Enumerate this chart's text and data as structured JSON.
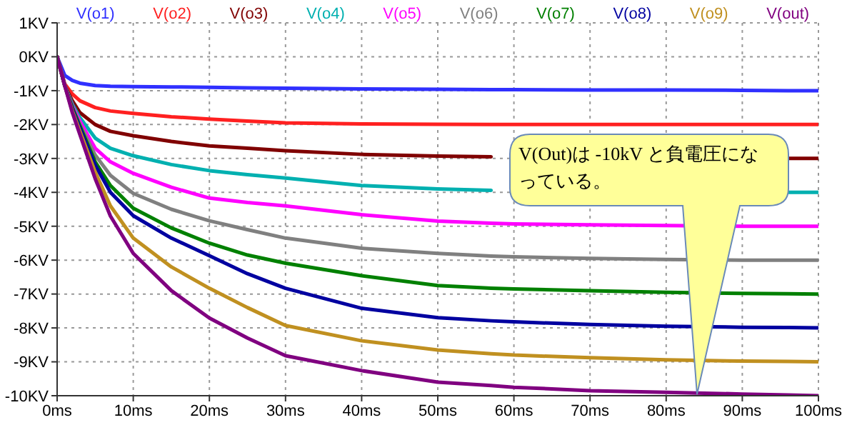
{
  "chart_data": {
    "type": "line",
    "x": [
      0,
      1,
      2,
      3,
      5,
      7,
      10,
      15,
      20,
      25,
      30,
      40,
      50,
      57,
      60,
      70,
      80,
      90,
      96,
      100
    ],
    "series": [
      {
        "name": "V(o1)",
        "color": "#3030ff",
        "values": [
          0,
          -0.55,
          -0.7,
          -0.78,
          -0.85,
          -0.87,
          -0.88,
          -0.89,
          -0.9,
          -0.92,
          -0.93,
          -0.95,
          -0.96,
          -0.97,
          -0.97,
          -0.98,
          -0.98,
          -0.99,
          -1.0,
          -1.0
        ]
      },
      {
        "name": "V(o2)",
        "color": "#ff2020",
        "values": [
          0,
          -0.8,
          -1.1,
          -1.3,
          -1.5,
          -1.6,
          -1.67,
          -1.77,
          -1.84,
          -1.9,
          -1.95,
          -1.98,
          -1.99,
          -2.0,
          -2.0,
          -2.0,
          -2.0,
          -2.0,
          -2.0,
          -2.0
        ]
      },
      {
        "name": "V(o3)",
        "color": "#800000",
        "values": [
          0,
          -0.85,
          -1.3,
          -1.65,
          -2.0,
          -2.2,
          -2.33,
          -2.5,
          -2.63,
          -2.7,
          -2.77,
          -2.88,
          -2.93,
          -2.95,
          null,
          null,
          null,
          null,
          -3.0,
          -3.0
        ]
      },
      {
        "name": "V(o4)",
        "color": "#00b0b0",
        "values": [
          0,
          -0.85,
          -1.4,
          -1.8,
          -2.4,
          -2.7,
          -2.92,
          -3.18,
          -3.36,
          -3.48,
          -3.58,
          -3.8,
          -3.9,
          -3.94,
          null,
          null,
          null,
          null,
          -4.0,
          -4.0
        ]
      },
      {
        "name": "V(o5)",
        "color": "#ff00ff",
        "values": [
          0,
          -0.85,
          -1.45,
          -1.9,
          -2.7,
          -3.1,
          -3.44,
          -3.85,
          -4.17,
          -4.3,
          -4.4,
          -4.66,
          -4.85,
          -4.91,
          -4.93,
          -4.96,
          -4.98,
          -5.0,
          -5.0,
          -5.0
        ]
      },
      {
        "name": "V(o6)",
        "color": "#808080",
        "values": [
          0,
          -0.85,
          -1.5,
          -2.0,
          -2.9,
          -3.5,
          -4.03,
          -4.5,
          -4.84,
          -5.1,
          -5.35,
          -5.65,
          -5.8,
          -5.88,
          -5.9,
          -5.95,
          -5.98,
          -6.0,
          -6.0,
          -6.0
        ]
      },
      {
        "name": "V(o7)",
        "color": "#008000",
        "values": [
          0,
          -0.85,
          -1.5,
          -2.05,
          -3.1,
          -3.8,
          -4.47,
          -5.05,
          -5.5,
          -5.85,
          -6.09,
          -6.46,
          -6.75,
          -6.83,
          -6.85,
          -6.9,
          -6.95,
          -6.98,
          -6.99,
          -7.0
        ]
      },
      {
        "name": "V(o8)",
        "color": "#0000a0",
        "values": [
          0,
          -0.85,
          -1.55,
          -2.1,
          -3.2,
          -4.0,
          -4.69,
          -5.35,
          -5.87,
          -6.4,
          -6.83,
          -7.42,
          -7.7,
          -7.79,
          -7.82,
          -7.9,
          -7.95,
          -7.98,
          -7.99,
          -8.0
        ]
      },
      {
        "name": "V(o9)",
        "color": "#c09020",
        "values": [
          0,
          -0.85,
          -1.6,
          -2.2,
          -3.4,
          -4.4,
          -5.35,
          -6.2,
          -6.83,
          -7.4,
          -7.93,
          -8.38,
          -8.65,
          -8.76,
          -8.8,
          -8.88,
          -8.94,
          -8.98,
          -8.99,
          -9.0
        ]
      },
      {
        "name": "V(out)",
        "color": "#800080",
        "values": [
          0,
          -0.85,
          -1.65,
          -2.3,
          -3.6,
          -4.7,
          -5.8,
          -6.9,
          -7.71,
          -8.3,
          -8.82,
          -9.26,
          -9.6,
          -9.7,
          -9.75,
          -9.85,
          -9.9,
          -9.95,
          -9.98,
          -10.0
        ]
      }
    ],
    "xlim": [
      0,
      100
    ],
    "xticks": [
      {
        "value": 0,
        "label": "0ms"
      },
      {
        "value": 10,
        "label": "10ms"
      },
      {
        "value": 20,
        "label": "20ms"
      },
      {
        "value": 30,
        "label": "30ms"
      },
      {
        "value": 40,
        "label": "40ms"
      },
      {
        "value": 50,
        "label": "50ms"
      },
      {
        "value": 60,
        "label": "60ms"
      },
      {
        "value": 70,
        "label": "70ms"
      },
      {
        "value": 80,
        "label": "80ms"
      },
      {
        "value": 90,
        "label": "90ms"
      },
      {
        "value": 100,
        "label": "100ms"
      }
    ],
    "ylim": [
      -10,
      1
    ],
    "yticks": [
      {
        "value": 1,
        "label": "1KV"
      },
      {
        "value": 0,
        "label": "0KV"
      },
      {
        "value": -1,
        "label": "-1KV"
      },
      {
        "value": -2,
        "label": "-2KV"
      },
      {
        "value": -3,
        "label": "-3KV"
      },
      {
        "value": -4,
        "label": "-4KV"
      },
      {
        "value": -5,
        "label": "-5KV"
      },
      {
        "value": -6,
        "label": "-6KV"
      },
      {
        "value": -7,
        "label": "-7KV"
      },
      {
        "value": -8,
        "label": "-8KV"
      },
      {
        "value": -9,
        "label": "-9KV"
      },
      {
        "value": -10,
        "label": "-10KV"
      }
    ],
    "grid": true,
    "legend": "top",
    "marker": "none",
    "line_style": "solid",
    "annotations": [
      "V(Out)は -10kV と負電圧になっている。"
    ]
  }
}
